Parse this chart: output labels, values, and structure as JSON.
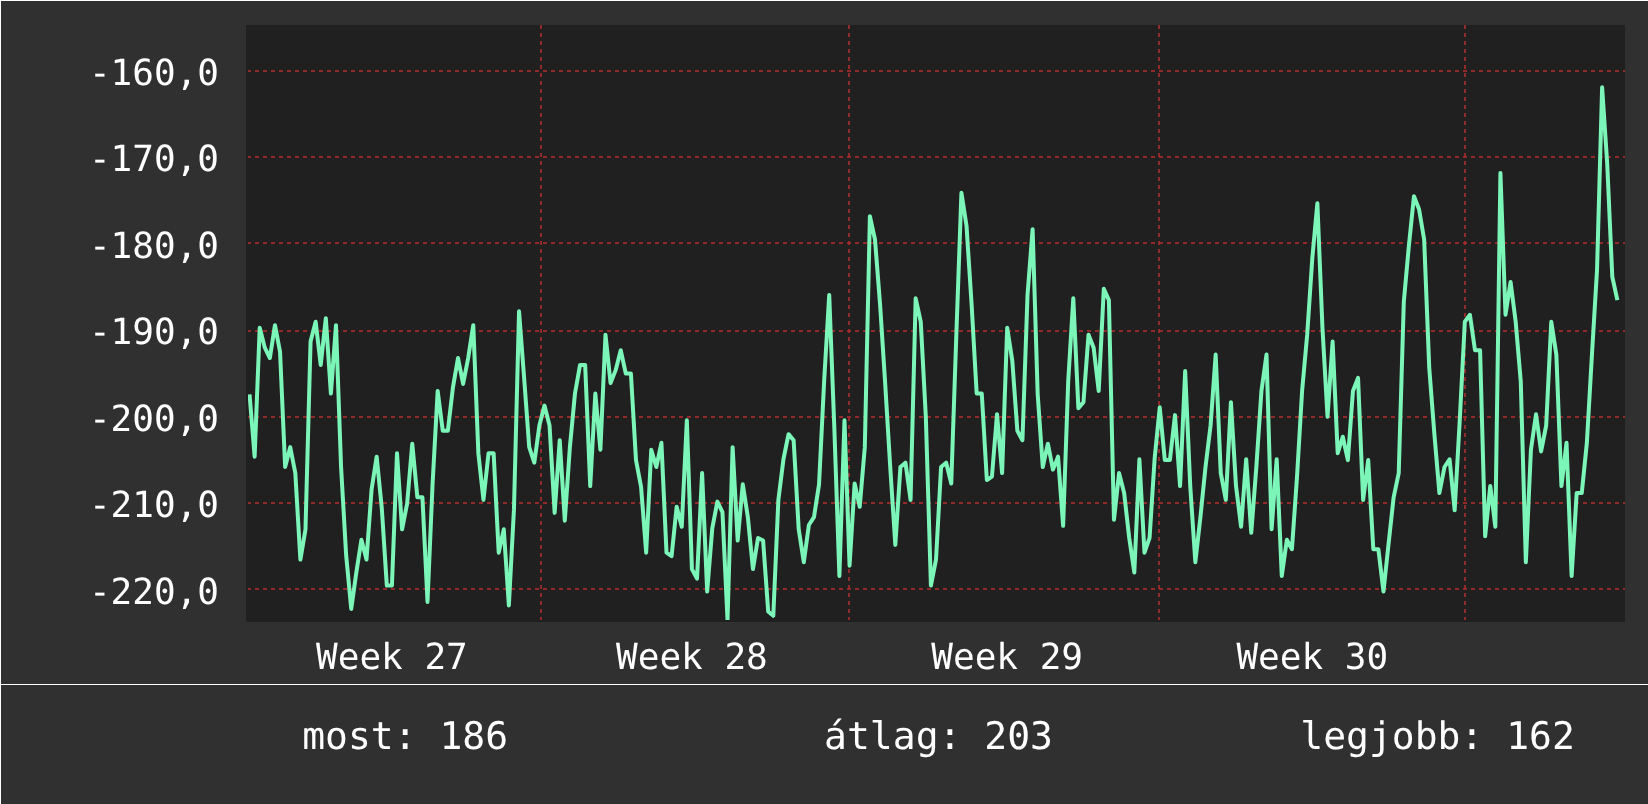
{
  "chart_data": {
    "type": "line",
    "categories": [
      null,
      null,
      null,
      null,
      null,
      null,
      null,
      null,
      null,
      null,
      null,
      null,
      null,
      null,
      null,
      null,
      null,
      null,
      null,
      null,
      null,
      null,
      null,
      null,
      null,
      null,
      null,
      null,
      "Week 27",
      null,
      null,
      null,
      null,
      null,
      null,
      null,
      null,
      null,
      null,
      null,
      null,
      null,
      null,
      null,
      null,
      null,
      null,
      null,
      null,
      null,
      null,
      null,
      null,
      null,
      null,
      null,
      null,
      null,
      null,
      null,
      null,
      null,
      null,
      null,
      null,
      null,
      null,
      null,
      null,
      null,
      null,
      null,
      null,
      null,
      null,
      null,
      null,
      null,
      null,
      null,
      null,
      null,
      null,
      null,
      null,
      null,
      null,
      "Week 28",
      null,
      null,
      null,
      null,
      null,
      null,
      null,
      null,
      null,
      null,
      null,
      null,
      null,
      null,
      null,
      null,
      null,
      null,
      null,
      null,
      null,
      null,
      null,
      null,
      null,
      null,
      null,
      null,
      null,
      null,
      null,
      null,
      null,
      null,
      null,
      null,
      null,
      null,
      null,
      null,
      null,
      null,
      null,
      null,
      null,
      null,
      null,
      null,
      null,
      null,
      null,
      null,
      null,
      null,
      null,
      null,
      null,
      null,
      null,
      null,
      null,
      "Week 29",
      null,
      null,
      null,
      null,
      null,
      null,
      null,
      null,
      null,
      null,
      null,
      null,
      null,
      null,
      null,
      null,
      null,
      null,
      null,
      null,
      null,
      null,
      null,
      null,
      null,
      null,
      null,
      null,
      null,
      null,
      null,
      null,
      null,
      null,
      null,
      null,
      null,
      null,
      null,
      null,
      null,
      null,
      null,
      null,
      null,
      null,
      null,
      null,
      null,
      null,
      null,
      null,
      null,
      null,
      null,
      null,
      null,
      null,
      null,
      "Week 30",
      null,
      null,
      null,
      null,
      null,
      null,
      null,
      null,
      null,
      null,
      null,
      null,
      null,
      null,
      null,
      null,
      null,
      null,
      null,
      null,
      null,
      null,
      null,
      null,
      null,
      null,
      null,
      null,
      null,
      null,
      null,
      null,
      null,
      null,
      null,
      null,
      null,
      null,
      null,
      null,
      null,
      null,
      null,
      null,
      null,
      null,
      null,
      null,
      null,
      null,
      null,
      null,
      null,
      null,
      null,
      null,
      null,
      null,
      null,
      null
    ],
    "series": [
      {
        "color": "#7cf5b8",
        "values": [
          -197.4,
          -204.6,
          -189.7,
          -192,
          -193.2,
          -189.4,
          -192.5,
          -205.8,
          -203.5,
          -206.5,
          -216.5,
          -213,
          -191.3,
          -189,
          -194,
          -188.6,
          -197.3,
          -189.4,
          -205.8,
          -216,
          -222.2,
          -218,
          -214.2,
          -216.5,
          -208.4,
          -204.6,
          -210.5,
          -219.5,
          -219.5,
          -204.2,
          -213,
          -210,
          -203.1,
          -209.3,
          -209.3,
          -221.4,
          -207.7,
          -197,
          -201.6,
          -201.6,
          -196.6,
          -193.2,
          -196.2,
          -193.2,
          -189.4,
          -204.2,
          -209.6,
          -204.2,
          -204.2,
          -215.7,
          -213,
          -221.8,
          -210.7,
          -187.8,
          -195.5,
          -203.5,
          -205.3,
          -201,
          -198.7,
          -201,
          -211.1,
          -202.7,
          -212,
          -203.5,
          -197.3,
          -194,
          -194,
          -208,
          -197.3,
          -203.8,
          -190.5,
          -196.1,
          -194.6,
          -192.3,
          -195,
          -195,
          -205,
          -208.1,
          -215.7,
          -203.8,
          -205.8,
          -203,
          -215.7,
          -216.1,
          -210.4,
          -212.7,
          -200.4,
          -217.6,
          -218.7,
          -206.5,
          -220.2,
          -212.9,
          -209.8,
          -211,
          -223.5,
          -203.5,
          -214.3,
          -207.8,
          -211.6,
          -217.6,
          -214,
          -214.3,
          -222.5,
          -223,
          -209.6,
          -204.9,
          -202,
          -202.7,
          -213,
          -216.8,
          -212.5,
          -211.6,
          -207.8,
          -195.9,
          -185.9,
          -201.2,
          -218.4,
          -200.4,
          -217.2,
          -207.7,
          -210.4,
          -203.5,
          -176.8,
          -179.5,
          -187,
          -196.1,
          -205.8,
          -214.8,
          -205.8,
          -205.3,
          -209.6,
          -186.3,
          -189,
          -200,
          -219.5,
          -216.5,
          -205.8,
          -205.3,
          -207.7,
          -190.5,
          -174.1,
          -177.9,
          -187,
          -197.3,
          -197.3,
          -207.3,
          -206.9,
          -199.7,
          -206.5,
          -189.7,
          -193.5,
          -201.6,
          -202.7,
          -185.9,
          -178.3,
          -197.4,
          -205.8,
          -203.1,
          -206.1,
          -204.6,
          -212.6,
          -195.9,
          -186.3,
          -199,
          -198.3,
          -190.5,
          -192,
          -197,
          -185.2,
          -186.5,
          -211.9,
          -206.5,
          -208.8,
          -214,
          -218,
          -204.9,
          -215.7,
          -214,
          -204.8,
          -198.9,
          -205,
          -205,
          -199.8,
          -208,
          -194.7,
          -208,
          -216.8,
          -211.6,
          -205.8,
          -201,
          -192.8,
          -206.5,
          -209.6,
          -198.3,
          -208,
          -212.7,
          -204.9,
          -213.4,
          -205.8,
          -197,
          -192.8,
          -213,
          -204.9,
          -218.4,
          -214.2,
          -215.3,
          -206.9,
          -197,
          -190.5,
          -181.7,
          -175.3,
          -189.7,
          -200,
          -191.3,
          -204.2,
          -202.3,
          -205,
          -197,
          -195.5,
          -209.6,
          -205,
          -215.3,
          -215.3,
          -220.2,
          -214.7,
          -209.3,
          -206.5,
          -186.7,
          -180.2,
          -174.5,
          -176,
          -179.5,
          -194.3,
          -201.9,
          -208.8,
          -205.8,
          -204.9,
          -210.8,
          -200.4,
          -189,
          -188.2,
          -192.3,
          -192.3,
          -213.8,
          -208,
          -212.7,
          -171.8,
          -188.2,
          -184.4,
          -189,
          -195.9,
          -216.8,
          -203.8,
          -199.7,
          -204,
          -201,
          -189,
          -192.8,
          -208,
          -203,
          -218.4,
          -208.8,
          -208.8,
          -203,
          -192.8,
          -183,
          -161.9,
          -170.7,
          -183.8,
          -186.5
        ]
      }
    ],
    "ylim": [
      -223.6,
      -154.7
    ],
    "yticks": [
      {
        "value": -220,
        "label": "-220,0"
      },
      {
        "value": -210,
        "label": "-210,0"
      },
      {
        "value": -200,
        "label": "-200,0"
      },
      {
        "value": -190,
        "label": "-190,0"
      },
      {
        "value": -180,
        "label": "-180,0"
      },
      {
        "value": -170,
        "label": "-170,0"
      },
      {
        "value": -160,
        "label": "-160,0"
      }
    ],
    "grid": true,
    "line_style": "solid",
    "annotations": [
      "most: 186",
      "átlag: 203",
      "legjobb: 162"
    ]
  }
}
